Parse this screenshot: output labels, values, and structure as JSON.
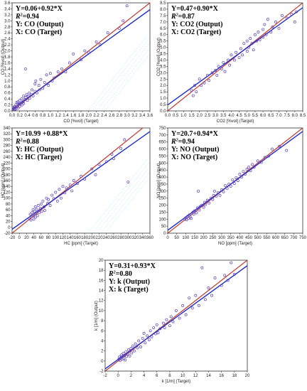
{
  "colors": {
    "fit_line": "#1f2bc8",
    "ideal_line": "#c0392b",
    "points": "#5b3fb8",
    "frame": "#333333",
    "watermark": "#7fd0ff"
  },
  "chart_data": [
    {
      "id": "co",
      "type": "scatter",
      "xlabel": "CO [%vol] (Target)",
      "ylabel": "CO [%vol] (Output)",
      "xlim": [
        0,
        3.6
      ],
      "ylim": [
        0,
        3.6
      ],
      "xticks": [
        "0.0",
        "0.2",
        "0.4",
        "0.6",
        "0.8",
        "1.0",
        "1.2",
        "1.4",
        "1.6",
        "1.8",
        "2.0",
        "2.2",
        "2.4",
        "2.6",
        "2.8",
        "3.0",
        "3.2",
        "3.4",
        "3.6"
      ],
      "yticks": [
        "0.0",
        "0.2",
        "0.4",
        "0.6",
        "0.8",
        "1.0",
        "1.2",
        "1.4",
        "1.6",
        "1.8",
        "2.0",
        "2.2",
        "2.4",
        "2.6",
        "2.8",
        "3.0",
        "3.2",
        "3.4",
        "3.6"
      ],
      "equation": "Y=0.06+0.92*X",
      "r2_label": "R",
      "r2_value": "=0.94",
      "y_desc": "Y: CO (Output)",
      "x_desc": "X: CO (Target)",
      "fit": {
        "intercept": 0.06,
        "slope": 0.92
      },
      "points": [
        [
          0.02,
          0.05
        ],
        [
          0.03,
          0.12
        ],
        [
          0.05,
          0.02
        ],
        [
          0.05,
          0.1
        ],
        [
          0.07,
          0.15
        ],
        [
          0.08,
          0.05
        ],
        [
          0.1,
          0.2
        ],
        [
          0.1,
          0.08
        ],
        [
          0.12,
          0.28
        ],
        [
          0.14,
          0.15
        ],
        [
          0.15,
          0.3
        ],
        [
          0.16,
          0.1
        ],
        [
          0.18,
          0.22
        ],
        [
          0.2,
          0.35
        ],
        [
          0.2,
          0.15
        ],
        [
          0.22,
          0.25
        ],
        [
          0.25,
          0.4
        ],
        [
          0.26,
          0.2
        ],
        [
          0.28,
          0.3
        ],
        [
          0.3,
          0.5
        ],
        [
          0.3,
          0.25
        ],
        [
          0.33,
          0.38
        ],
        [
          0.35,
          1.4
        ],
        [
          0.36,
          0.45
        ],
        [
          0.38,
          0.55
        ],
        [
          0.4,
          0.35
        ],
        [
          0.42,
          0.48
        ],
        [
          0.45,
          0.6
        ],
        [
          0.46,
          0.42
        ],
        [
          0.5,
          0.55
        ],
        [
          0.52,
          0.7
        ],
        [
          0.55,
          0.5
        ],
        [
          0.6,
          0.65
        ],
        [
          0.6,
          0.9
        ],
        [
          0.62,
          1.0
        ],
        [
          0.65,
          0.6
        ],
        [
          0.7,
          0.85
        ],
        [
          0.72,
          0.7
        ],
        [
          0.75,
          1.05
        ],
        [
          0.8,
          0.75
        ],
        [
          0.85,
          0.95
        ],
        [
          0.9,
          1.2
        ],
        [
          0.95,
          0.85
        ],
        [
          1.0,
          1.25
        ],
        [
          1.05,
          1.0
        ],
        [
          1.1,
          1.1
        ],
        [
          1.2,
          1.3
        ],
        [
          1.3,
          1.4
        ],
        [
          1.4,
          1.3
        ],
        [
          1.5,
          1.6
        ],
        [
          1.6,
          1.9
        ],
        [
          1.8,
          1.7
        ],
        [
          1.9,
          2.0
        ],
        [
          2.0,
          1.95
        ],
        [
          2.2,
          2.3
        ],
        [
          2.3,
          2.2
        ],
        [
          2.5,
          2.6
        ],
        [
          2.8,
          2.75
        ],
        [
          2.9,
          3.0
        ],
        [
          3.0,
          3.5
        ]
      ]
    },
    {
      "id": "co2",
      "type": "scatter",
      "xlabel": "CO2 [%vol] (Target)",
      "ylabel": "CO2 [%vol] (Output)",
      "xlim": [
        0,
        8.5
      ],
      "ylim": [
        0,
        8.5
      ],
      "xticks": [
        "0.0",
        "0.5",
        "1.0",
        "1.5",
        "2.0",
        "2.5",
        "3.0",
        "3.5",
        "4.0",
        "4.5",
        "5.0",
        "5.5",
        "6.0",
        "6.5",
        "7.0",
        "7.5",
        "8.0",
        "8.5"
      ],
      "yticks": [
        "0.0",
        "0.5",
        "1.0",
        "1.5",
        "2.0",
        "2.5",
        "3.0",
        "3.5",
        "4.0",
        "4.5",
        "5.0",
        "5.5",
        "6.0",
        "6.5",
        "7.0",
        "7.5",
        "8.0",
        "8.5"
      ],
      "equation": "Y=0.47+0.90*X",
      "r2_label": "R",
      "r2_value": "=0.87",
      "y_desc": "Y: CO2 (Output)",
      "x_desc": "X: CO2 (Target)",
      "fit": {
        "intercept": 0.47,
        "slope": 0.9
      },
      "points": [
        [
          1.5,
          1.6
        ],
        [
          1.6,
          1.2
        ],
        [
          1.7,
          2.0
        ],
        [
          1.8,
          1.5
        ],
        [
          2.0,
          2.5
        ],
        [
          2.1,
          2.0
        ],
        [
          2.3,
          2.2
        ],
        [
          2.5,
          2.8
        ],
        [
          2.6,
          2.4
        ],
        [
          2.8,
          3.0
        ],
        [
          3.0,
          3.2
        ],
        [
          3.1,
          2.8
        ],
        [
          3.2,
          3.5
        ],
        [
          3.4,
          3.3
        ],
        [
          3.5,
          3.8
        ],
        [
          3.6,
          3.1
        ],
        [
          3.8,
          4.0
        ],
        [
          3.9,
          3.6
        ],
        [
          4.0,
          4.4
        ],
        [
          4.2,
          4.0
        ],
        [
          4.3,
          4.6
        ],
        [
          4.5,
          4.2
        ],
        [
          4.6,
          4.9
        ],
        [
          4.7,
          4.4
        ],
        [
          4.8,
          5.3
        ],
        [
          5.0,
          4.7
        ],
        [
          5.0,
          5.5
        ],
        [
          5.1,
          5.0
        ],
        [
          5.2,
          5.7
        ],
        [
          5.3,
          5.3
        ],
        [
          5.4,
          4.8
        ],
        [
          5.5,
          6.0
        ],
        [
          5.6,
          5.5
        ],
        [
          5.7,
          6.2
        ],
        [
          5.8,
          5.6
        ],
        [
          6.0,
          6.4
        ],
        [
          6.0,
          5.8
        ],
        [
          6.1,
          6.8
        ],
        [
          6.2,
          6.0
        ],
        [
          6.3,
          7.2
        ],
        [
          6.5,
          6.2
        ],
        [
          6.6,
          6.6
        ],
        [
          6.8,
          7.0
        ],
        [
          7.0,
          6.5
        ],
        [
          7.2,
          7.5
        ],
        [
          7.5,
          7.3
        ],
        [
          7.8,
          7.6
        ],
        [
          8.0,
          7.0
        ],
        [
          8.1,
          7.8
        ]
      ]
    },
    {
      "id": "hc",
      "type": "scatter",
      "xlabel": "HC [ppm] (Target)",
      "ylabel": "HC [ppm] (Output)",
      "xlim": [
        -20,
        360
      ],
      "ylim": [
        -20,
        340
      ],
      "xticks": [
        "-20",
        "0",
        "20",
        "40",
        "60",
        "80",
        "100",
        "120",
        "140",
        "160",
        "180",
        "200",
        "220",
        "240",
        "260",
        "280",
        "300",
        "320",
        "340",
        "360"
      ],
      "yticks": [
        "-20",
        "0",
        "20",
        "40",
        "60",
        "80",
        "100",
        "120",
        "140",
        "160",
        "180",
        "200",
        "220",
        "240",
        "260",
        "280",
        "300",
        "320",
        "340"
      ],
      "equation": "Y=10.99 +0.88*X",
      "r2_label": "R",
      "r2_value": "=0.88",
      "y_desc": "Y: HC (Output)",
      "x_desc": "X: HC (Target)",
      "fit": {
        "intercept": 10.99,
        "slope": 0.88
      },
      "points": [
        [
          28,
          30
        ],
        [
          30,
          45
        ],
        [
          32,
          25
        ],
        [
          35,
          50
        ],
        [
          36,
          38
        ],
        [
          38,
          60
        ],
        [
          40,
          42
        ],
        [
          40,
          28
        ],
        [
          42,
          55
        ],
        [
          44,
          70
        ],
        [
          45,
          35
        ],
        [
          46,
          48
        ],
        [
          48,
          62
        ],
        [
          50,
          40
        ],
        [
          52,
          75
        ],
        [
          55,
          50
        ],
        [
          58,
          65
        ],
        [
          60,
          80
        ],
        [
          62,
          55
        ],
        [
          65,
          90
        ],
        [
          68,
          70
        ],
        [
          70,
          58
        ],
        [
          75,
          100
        ],
        [
          78,
          82
        ],
        [
          80,
          95
        ],
        [
          85,
          75
        ],
        [
          90,
          110
        ],
        [
          95,
          98
        ],
        [
          100,
          120
        ],
        [
          105,
          90
        ],
        [
          110,
          130
        ],
        [
          115,
          100
        ],
        [
          120,
          140
        ],
        [
          125,
          118
        ],
        [
          130,
          135
        ],
        [
          140,
          145
        ],
        [
          145,
          125
        ],
        [
          150,
          160
        ],
        [
          160,
          150
        ],
        [
          170,
          175
        ],
        [
          180,
          165
        ],
        [
          200,
          200
        ],
        [
          210,
          180
        ],
        [
          220,
          215
        ],
        [
          240,
          225
        ],
        [
          255,
          250
        ],
        [
          260,
          235
        ],
        [
          280,
          270
        ],
        [
          290,
          300
        ],
        [
          300,
          155
        ]
      ]
    },
    {
      "id": "no",
      "type": "scatter",
      "xlabel": "NO [ppm] (Target)",
      "ylabel": "NO [ppm] (Output)",
      "xlim": [
        0,
        750
      ],
      "ylim": [
        0,
        750
      ],
      "xticks": [
        "0",
        "50",
        "100",
        "150",
        "200",
        "250",
        "300",
        "350",
        "400",
        "450",
        "500",
        "550",
        "600",
        "650",
        "700",
        "750"
      ],
      "yticks": [
        "0",
        "50",
        "100",
        "150",
        "200",
        "250",
        "300",
        "350",
        "400",
        "450",
        "500",
        "550",
        "600",
        "650",
        "700",
        "750"
      ],
      "equation": "Y=20.7+0.94*X",
      "r2_label": "R",
      "r2_value": "=0.94",
      "y_desc": "Y: NO (Output)",
      "x_desc": "X: NO (Target)",
      "fit": {
        "intercept": 20.7,
        "slope": 0.94
      },
      "points": [
        [
          95,
          100
        ],
        [
          100,
          110
        ],
        [
          105,
          95
        ],
        [
          110,
          120
        ],
        [
          115,
          105
        ],
        [
          120,
          130
        ],
        [
          125,
          115
        ],
        [
          130,
          105
        ],
        [
          140,
          150
        ],
        [
          145,
          135
        ],
        [
          150,
          160
        ],
        [
          160,
          145
        ],
        [
          165,
          180
        ],
        [
          170,
          300
        ],
        [
          175,
          165
        ],
        [
          180,
          190
        ],
        [
          190,
          200
        ],
        [
          200,
          185
        ],
        [
          205,
          220
        ],
        [
          210,
          205
        ],
        [
          220,
          235
        ],
        [
          230,
          215
        ],
        [
          240,
          250
        ],
        [
          250,
          240
        ],
        [
          255,
          270
        ],
        [
          260,
          300
        ],
        [
          270,
          265
        ],
        [
          280,
          290
        ],
        [
          290,
          270
        ],
        [
          300,
          310
        ],
        [
          310,
          295
        ],
        [
          320,
          340
        ],
        [
          330,
          320
        ],
        [
          340,
          350
        ],
        [
          350,
          335
        ],
        [
          360,
          380
        ],
        [
          370,
          355
        ],
        [
          380,
          395
        ],
        [
          390,
          375
        ],
        [
          400,
          420
        ],
        [
          410,
          400
        ],
        [
          420,
          440
        ],
        [
          430,
          420
        ],
        [
          440,
          455
        ],
        [
          450,
          470
        ],
        [
          460,
          445
        ],
        [
          470,
          490
        ],
        [
          480,
          470
        ],
        [
          500,
          515
        ],
        [
          520,
          505
        ],
        [
          540,
          540
        ],
        [
          560,
          550
        ],
        [
          580,
          600
        ],
        [
          620,
          620
        ],
        [
          660,
          590
        ]
      ]
    },
    {
      "id": "k",
      "type": "scatter",
      "xlabel": "k [1/m] (Target)",
      "ylabel": "k [1/m] (Output)",
      "xlim": [
        -2,
        20
      ],
      "ylim": [
        -2,
        20
      ],
      "xticks": [
        "-2",
        "0",
        "2",
        "4",
        "6",
        "8",
        "10",
        "12",
        "14",
        "16",
        "18",
        "20"
      ],
      "yticks": [
        "-2",
        "0",
        "2",
        "4",
        "6",
        "8",
        "10",
        "12",
        "14",
        "16",
        "18",
        "20"
      ],
      "equation": "Y=0.31+0.93*X",
      "r2_label": "R",
      "r2_value": "=0.80",
      "y_desc": "Y: k (Output)",
      "x_desc": "X: k (Target)",
      "fit": {
        "intercept": 0.31,
        "slope": 0.93
      },
      "points": [
        [
          0.1,
          0.3
        ],
        [
          0.2,
          0.8
        ],
        [
          0.3,
          0.1
        ],
        [
          0.4,
          0.6
        ],
        [
          0.5,
          1.2
        ],
        [
          0.6,
          0.4
        ],
        [
          0.7,
          0.9
        ],
        [
          0.8,
          1.5
        ],
        [
          0.9,
          0.5
        ],
        [
          1.0,
          1.1
        ],
        [
          1.1,
          0.2
        ],
        [
          1.2,
          1.8
        ],
        [
          1.3,
          0.9
        ],
        [
          1.5,
          1.4
        ],
        [
          1.6,
          2.2
        ],
        [
          1.8,
          1.0
        ],
        [
          2.0,
          2.5
        ],
        [
          2.1,
          1.6
        ],
        [
          2.3,
          3.0
        ],
        [
          2.5,
          2.0
        ],
        [
          2.7,
          3.4
        ],
        [
          3.0,
          2.6
        ],
        [
          3.2,
          4.0
        ],
        [
          3.5,
          2.8
        ],
        [
          3.8,
          4.5
        ],
        [
          4.0,
          5.5
        ],
        [
          4.2,
          3.6
        ],
        [
          4.5,
          5.0
        ],
        [
          4.8,
          4.2
        ],
        [
          5.0,
          6.0
        ],
        [
          5.2,
          4.8
        ],
        [
          5.5,
          6.6
        ],
        [
          5.8,
          5.4
        ],
        [
          6.0,
          7.2
        ],
        [
          6.2,
          5.6
        ],
        [
          6.5,
          6.4
        ],
        [
          7.0,
          7.5
        ],
        [
          7.2,
          6.6
        ],
        [
          7.5,
          8.2
        ],
        [
          8.0,
          7.0
        ],
        [
          8.2,
          8.8
        ],
        [
          8.5,
          7.8
        ],
        [
          9.0,
          10.0
        ],
        [
          9.5,
          8.5
        ],
        [
          10.0,
          11.0
        ],
        [
          10.5,
          9.2
        ],
        [
          11.0,
          12.5
        ],
        [
          11.5,
          10.5
        ],
        [
          12.0,
          13.0
        ],
        [
          12.5,
          11.0
        ],
        [
          13.0,
          18.5
        ],
        [
          13.5,
          12.2
        ],
        [
          14.0,
          14.5
        ],
        [
          14.5,
          13.0
        ],
        [
          15.0,
          16.5
        ],
        [
          16.0,
          15.0
        ],
        [
          16.5,
          17.0
        ],
        [
          17.0,
          16.0
        ],
        [
          17.5,
          19.5
        ],
        [
          18.0,
          17.2
        ]
      ]
    }
  ]
}
